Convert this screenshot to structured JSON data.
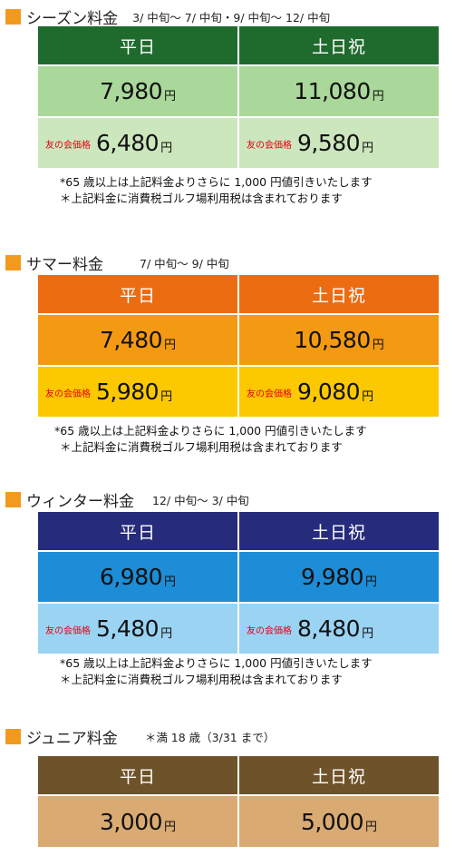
{
  "headers": {
    "weekday": "平日",
    "holiday": "土日祝"
  },
  "unit": "円",
  "member_label": "友の会価格",
  "notes": {
    "senior": "*65 歳以上は上記料金よりさらに 1,000 円値引きいたします",
    "tax": "＊上記料金に消費税ゴルフ場利用税は含まれております"
  },
  "sections": {
    "season": {
      "title": "シーズン料金",
      "period": "3/ 中旬～ 7/ 中旬・9/ 中旬～ 12/ 中旬",
      "colors": {
        "header": "#1f6b2e",
        "regular": "#a9d89a",
        "member": "#cce6bd"
      },
      "regular": {
        "weekday": "7,980",
        "holiday": "11,080"
      },
      "member": {
        "weekday": "6,480",
        "holiday": "9,580"
      }
    },
    "summer": {
      "title": "サマー料金",
      "period": "7/ 中旬～ 9/ 中旬",
      "colors": {
        "header": "#ec6c12",
        "regular": "#f49a12",
        "member": "#fcc800"
      },
      "regular": {
        "weekday": "7,480",
        "holiday": "10,580"
      },
      "member": {
        "weekday": "5,980",
        "holiday": "9,080"
      }
    },
    "winter": {
      "title": "ウィンター料金",
      "period": "12/ 中旬～ 3/ 中旬",
      "colors": {
        "header": "#262b7c",
        "regular": "#1c8dd6",
        "member": "#9bd3f3"
      },
      "regular": {
        "weekday": "6,980",
        "holiday": "9,980"
      },
      "member": {
        "weekday": "5,480",
        "holiday": "8,480"
      }
    },
    "junior": {
      "title": "ジュニア料金",
      "period": "＊満 18 歳（3/31 まで）",
      "colors": {
        "header": "#6e5229",
        "regular": "#d9aa72"
      },
      "regular": {
        "weekday": "3,000",
        "holiday": "5,000"
      }
    }
  }
}
